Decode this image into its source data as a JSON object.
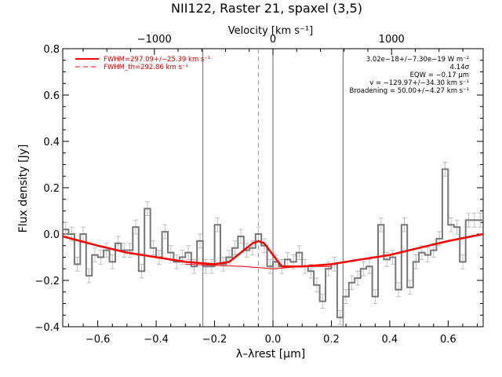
{
  "chart_data": {
    "type": "line",
    "title": "NII122, Raster 21, spaxel (3,5)",
    "xlabel": "λ–λrest [μm]",
    "ylabel": "Flux density [Jy]",
    "top_xlabel": "Velocity [km s⁻¹]",
    "xlim": [
      -0.72,
      0.72
    ],
    "ylim": [
      -0.4,
      0.8
    ],
    "x_ticks": [
      -0.6,
      -0.4,
      -0.2,
      0.0,
      0.2,
      0.4,
      0.6
    ],
    "x_tick_labels": [
      "−0.6",
      "−0.4",
      "−0.2",
      "0.0",
      "0.2",
      "0.4",
      "0.6"
    ],
    "y_ticks": [
      -0.4,
      -0.2,
      0.0,
      0.2,
      0.4,
      0.6,
      0.8
    ],
    "y_tick_labels": [
      "−0.4",
      "−0.2",
      "0.0",
      "0.2",
      "0.4",
      "0.6",
      "0.8"
    ],
    "top_ticks": [
      -1000,
      0,
      1000
    ],
    "top_tick_labels": [
      "−1000",
      "0",
      "1000"
    ],
    "vertical_lines": [
      -0.24,
      0.0,
      0.24
    ],
    "dashed_line_x": -0.05,
    "legend": [
      {
        "label": "FWHM=297.09+/−25.39 km s⁻¹",
        "style": "solid",
        "color": "#ff0000"
      },
      {
        "label": "FWHM_th=292.86 km s⁻¹",
        "style": "dashed",
        "color": "#ff0000"
      }
    ],
    "stats_text": [
      "3.02e−18+/−7.30e−19 W m⁻²",
      "4.14σ",
      "EQW = −0.17 μm",
      "v = −129.97+/−34.30 km s⁻¹",
      "Broadening = 50.00+/−4.27 km s⁻¹"
    ],
    "series": [
      {
        "style": "step",
        "color": "#777777",
        "x": [
          -0.72,
          -0.7,
          -0.68,
          -0.66,
          -0.64,
          -0.62,
          -0.6,
          -0.58,
          -0.56,
          -0.54,
          -0.52,
          -0.5,
          -0.48,
          -0.46,
          -0.44,
          -0.42,
          -0.4,
          -0.38,
          -0.36,
          -0.34,
          -0.32,
          -0.3,
          -0.28,
          -0.26,
          -0.24,
          -0.22,
          -0.2,
          -0.18,
          -0.16,
          -0.14,
          -0.12,
          -0.1,
          -0.08,
          -0.06,
          -0.04,
          -0.02,
          0.0,
          0.02,
          0.04,
          0.06,
          0.08,
          0.1,
          0.12,
          0.14,
          0.16,
          0.18,
          0.2,
          0.22,
          0.24,
          0.26,
          0.28,
          0.3,
          0.32,
          0.34,
          0.36,
          0.38,
          0.4,
          0.42,
          0.44,
          0.46,
          0.48,
          0.5,
          0.52,
          0.54,
          0.56,
          0.58,
          0.6,
          0.62,
          0.64,
          0.66,
          0.68,
          0.7
        ],
        "y": [
          0.02,
          0.0,
          -0.13,
          0.0,
          -0.18,
          -0.09,
          -0.1,
          -0.07,
          -0.12,
          -0.04,
          -0.07,
          -0.07,
          0.03,
          -0.16,
          0.11,
          -0.06,
          -0.1,
          0.01,
          -0.08,
          -0.12,
          -0.1,
          -0.08,
          -0.14,
          -0.03,
          -0.14,
          -0.14,
          0.04,
          -0.13,
          -0.1,
          -0.06,
          -0.01,
          -0.07,
          -0.06,
          0.0,
          -0.05,
          -0.14,
          -0.12,
          -0.14,
          -0.11,
          -0.12,
          -0.08,
          -0.14,
          -0.16,
          -0.22,
          -0.29,
          -0.15,
          -0.13,
          -0.36,
          -0.27,
          -0.21,
          -0.19,
          -0.15,
          -0.14,
          -0.27,
          0.04,
          -0.11,
          -0.1,
          -0.24,
          0.04,
          -0.23,
          -0.12,
          -0.08,
          -0.09,
          -0.07,
          -0.02,
          0.28,
          0.04,
          0.03,
          -0.12,
          0.06,
          0.06,
          0.06
        ],
        "errors": [
          0.03,
          0.03,
          0.03,
          0.03,
          0.03,
          0.03,
          0.03,
          0.03,
          0.03,
          0.03,
          0.03,
          0.03,
          0.03,
          0.03,
          0.03,
          0.03,
          0.03,
          0.03,
          0.03,
          0.03,
          0.03,
          0.03,
          0.03,
          0.03,
          0.03,
          0.03,
          0.03,
          0.03,
          0.03,
          0.03,
          0.03,
          0.03,
          0.03,
          0.03,
          0.03,
          0.03,
          0.03,
          0.03,
          0.03,
          0.03,
          0.03,
          0.03,
          0.03,
          0.03,
          0.03,
          0.03,
          0.03,
          0.03,
          0.03,
          0.03,
          0.03,
          0.03,
          0.03,
          0.03,
          0.03,
          0.03,
          0.03,
          0.03,
          0.03,
          0.03,
          0.03,
          0.03,
          0.03,
          0.03,
          0.03,
          0.03,
          0.03,
          0.03,
          0.03,
          0.03,
          0.03,
          0.03
        ]
      },
      {
        "style": "line",
        "color": "#ff0000",
        "x": [
          -0.72,
          -0.6,
          -0.5,
          -0.4,
          -0.3,
          -0.2,
          -0.15,
          -0.1,
          -0.07,
          -0.05,
          -0.03,
          0.0,
          0.03,
          0.1,
          0.2,
          0.3,
          0.4,
          0.5,
          0.6,
          0.72
        ],
        "y": [
          -0.01,
          -0.05,
          -0.08,
          -0.1,
          -0.12,
          -0.13,
          -0.12,
          -0.07,
          -0.04,
          -0.03,
          -0.04,
          -0.09,
          -0.14,
          -0.14,
          -0.13,
          -0.11,
          -0.09,
          -0.06,
          -0.03,
          0.0
        ]
      },
      {
        "style": "thin-line",
        "color": "#ff0000",
        "x": [
          -0.3,
          -0.1,
          0.0,
          0.1,
          0.2
        ],
        "y": [
          -0.13,
          -0.14,
          -0.15,
          -0.14,
          -0.14
        ]
      }
    ]
  }
}
